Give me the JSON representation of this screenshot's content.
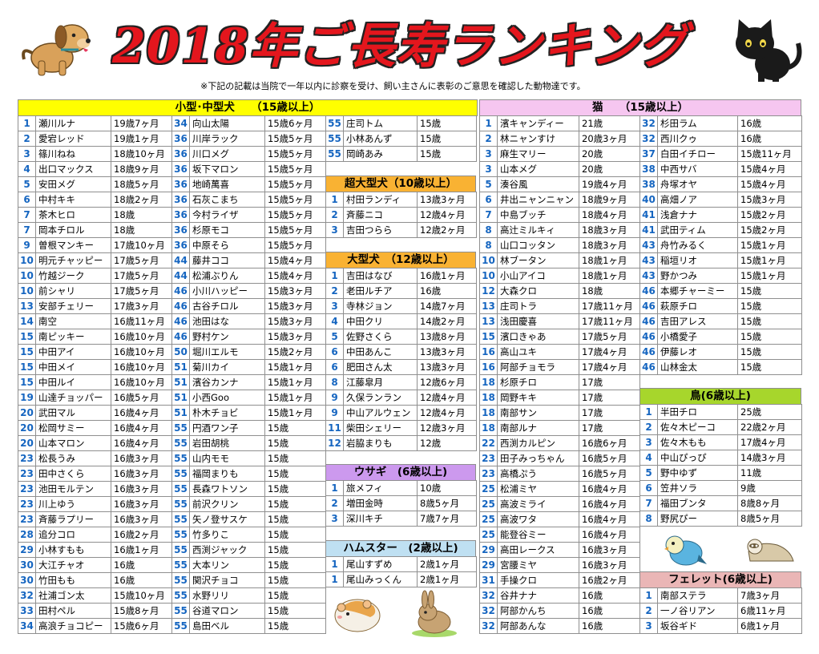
{
  "title": "2018年ご長寿ランキング",
  "note": "※下記の記載は当院で一年以内に診察を受け、飼い主さんに表彰のご意思を確認した動物達です。",
  "colors": {
    "dog_header": "#ffff00",
    "cat_header": "#f6c6f0",
    "big_header": "#f9b233",
    "rabbit_header": "#cc99ee",
    "hamster_header": "#bfe0f2",
    "bird_header": "#a7d62c",
    "ferret_header": "#eab6b6",
    "rank": "#1565c0",
    "title": "#e4161d"
  },
  "dogs": {
    "header": "小型･中型犬　　（15歳以上）",
    "col1": [
      {
        "rank": "1",
        "name": "瀬川ルナ",
        "age": "19歳7ヶ月"
      },
      {
        "rank": "2",
        "name": "愛宕レッド",
        "age": "19歳1ヶ月"
      },
      {
        "rank": "3",
        "name": "篠川ねね",
        "age": "18歳10ヶ月"
      },
      {
        "rank": "4",
        "name": "出口マックス",
        "age": "18歳9ヶ月"
      },
      {
        "rank": "5",
        "name": "安田メグ",
        "age": "18歳5ヶ月"
      },
      {
        "rank": "6",
        "name": "中村キキ",
        "age": "18歳2ヶ月"
      },
      {
        "rank": "7",
        "name": "茶木ヒロ",
        "age": "18歳"
      },
      {
        "rank": "7",
        "name": "岡本チロル",
        "age": "18歳"
      },
      {
        "rank": "9",
        "name": "曽根マンキー",
        "age": "17歳10ヶ月"
      },
      {
        "rank": "10",
        "name": "明元チャッピー",
        "age": "17歳5ヶ月"
      },
      {
        "rank": "10",
        "name": "竹越ジーク",
        "age": "17歳5ヶ月"
      },
      {
        "rank": "10",
        "name": "前シャリ",
        "age": "17歳5ヶ月"
      },
      {
        "rank": "13",
        "name": "安部チェリー",
        "age": "17歳3ヶ月"
      },
      {
        "rank": "14",
        "name": "南空",
        "age": "16歳11ヶ月"
      },
      {
        "rank": "15",
        "name": "南ピッキー",
        "age": "16歳10ヶ月"
      },
      {
        "rank": "15",
        "name": "中田アイ",
        "age": "16歳10ヶ月"
      },
      {
        "rank": "15",
        "name": "中田メイ",
        "age": "16歳10ヶ月"
      },
      {
        "rank": "15",
        "name": "中田ルイ",
        "age": "16歳10ヶ月"
      },
      {
        "rank": "19",
        "name": "山達チョッパー",
        "age": "16歳5ヶ月"
      },
      {
        "rank": "20",
        "name": "武田マル",
        "age": "16歳4ヶ月"
      },
      {
        "rank": "20",
        "name": "松岡サミー",
        "age": "16歳4ヶ月"
      },
      {
        "rank": "20",
        "name": "山本マロン",
        "age": "16歳4ヶ月"
      },
      {
        "rank": "23",
        "name": "松長うみ",
        "age": "16歳3ヶ月"
      },
      {
        "rank": "23",
        "name": "田中さくら",
        "age": "16歳3ヶ月"
      },
      {
        "rank": "23",
        "name": "池田モルテン",
        "age": "16歳3ヶ月"
      },
      {
        "rank": "23",
        "name": "川上ゆう",
        "age": "16歳3ヶ月"
      },
      {
        "rank": "23",
        "name": "斉藤ラプリー",
        "age": "16歳3ヶ月"
      },
      {
        "rank": "28",
        "name": "追分コロ",
        "age": "16歳2ヶ月"
      },
      {
        "rank": "29",
        "name": "小林すもも",
        "age": "16歳1ヶ月"
      },
      {
        "rank": "30",
        "name": "大江チャオ",
        "age": "16歳"
      },
      {
        "rank": "30",
        "name": "竹田もも",
        "age": "16歳"
      },
      {
        "rank": "32",
        "name": "社浦ゴン太",
        "age": "15歳10ヶ月"
      },
      {
        "rank": "33",
        "name": "田村ペル",
        "age": "15歳8ヶ月"
      },
      {
        "rank": "34",
        "name": "高浪チョコピー",
        "age": "15歳6ヶ月"
      }
    ],
    "col2": [
      {
        "rank": "34",
        "name": "向山太陽",
        "age": "15歳6ヶ月"
      },
      {
        "rank": "36",
        "name": "川岸ラック",
        "age": "15歳5ヶ月"
      },
      {
        "rank": "36",
        "name": "川口メグ",
        "age": "15歳5ヶ月"
      },
      {
        "rank": "36",
        "name": "坂下マロン",
        "age": "15歳5ヶ月"
      },
      {
        "rank": "36",
        "name": "地崎萬喜",
        "age": "15歳5ヶ月"
      },
      {
        "rank": "36",
        "name": "石灰こまち",
        "age": "15歳5ヶ月"
      },
      {
        "rank": "36",
        "name": "今村ライザ",
        "age": "15歳5ヶ月"
      },
      {
        "rank": "36",
        "name": "杉原モコ",
        "age": "15歳5ヶ月"
      },
      {
        "rank": "36",
        "name": "中原そら",
        "age": "15歳5ヶ月"
      },
      {
        "rank": "44",
        "name": "藤井ココ",
        "age": "15歳4ヶ月"
      },
      {
        "rank": "44",
        "name": "松浦ぶりん",
        "age": "15歳4ヶ月"
      },
      {
        "rank": "46",
        "name": "小川ハッピー",
        "age": "15歳3ヶ月"
      },
      {
        "rank": "46",
        "name": "古谷チロル",
        "age": "15歳3ヶ月"
      },
      {
        "rank": "46",
        "name": "池田はな",
        "age": "15歳3ヶ月"
      },
      {
        "rank": "46",
        "name": "野村ケン",
        "age": "15歳3ヶ月"
      },
      {
        "rank": "50",
        "name": "堀川エルモ",
        "age": "15歳2ヶ月"
      },
      {
        "rank": "51",
        "name": "菊川カイ",
        "age": "15歳1ヶ月"
      },
      {
        "rank": "51",
        "name": "濱谷カンナ",
        "age": "15歳1ヶ月"
      },
      {
        "rank": "51",
        "name": "小西Goo",
        "age": "15歳1ヶ月"
      },
      {
        "rank": "51",
        "name": "朴木チョビ",
        "age": "15歳1ヶ月"
      },
      {
        "rank": "55",
        "name": "円酒ワン子",
        "age": "15歳"
      },
      {
        "rank": "55",
        "name": "岩田胡桃",
        "age": "15歳"
      },
      {
        "rank": "55",
        "name": "山内モモ",
        "age": "15歳"
      },
      {
        "rank": "55",
        "name": "福岡まりも",
        "age": "15歳"
      },
      {
        "rank": "55",
        "name": "長森ワトソン",
        "age": "15歳"
      },
      {
        "rank": "55",
        "name": "前沢クリン",
        "age": "15歳"
      },
      {
        "rank": "55",
        "name": "矢ノ登サスケ",
        "age": "15歳"
      },
      {
        "rank": "55",
        "name": "竹多りこ",
        "age": "15歳"
      },
      {
        "rank": "55",
        "name": "西渕ジャック",
        "age": "15歳"
      },
      {
        "rank": "55",
        "name": "大本リン",
        "age": "15歳"
      },
      {
        "rank": "55",
        "name": "関沢チョコ",
        "age": "15歳"
      },
      {
        "rank": "55",
        "name": "水野リリ",
        "age": "15歳"
      },
      {
        "rank": "55",
        "name": "谷道マロン",
        "age": "15歳"
      },
      {
        "rank": "55",
        "name": "島田ベル",
        "age": "15歳"
      }
    ],
    "col3": [
      {
        "rank": "55",
        "name": "庄司トム",
        "age": "15歳"
      },
      {
        "rank": "55",
        "name": "小林あんず",
        "age": "15歳"
      },
      {
        "rank": "55",
        "name": "岡崎あみ",
        "age": "15歳"
      }
    ]
  },
  "xl_dogs": {
    "header": "超大型犬（10歳以上）",
    "rows": [
      {
        "rank": "1",
        "name": "村田ランディ",
        "age": "13歳3ヶ月"
      },
      {
        "rank": "2",
        "name": "斉藤ニコ",
        "age": "12歳4ヶ月"
      },
      {
        "rank": "3",
        "name": "吉田つらら",
        "age": "12歳2ヶ月"
      }
    ]
  },
  "big_dogs": {
    "header": "大型犬　（12歳以上）",
    "rows": [
      {
        "rank": "1",
        "name": "吉田はなび",
        "age": "16歳1ヶ月"
      },
      {
        "rank": "2",
        "name": "老田ルチア",
        "age": "16歳"
      },
      {
        "rank": "3",
        "name": "寺林ジョン",
        "age": "14歳7ヶ月"
      },
      {
        "rank": "4",
        "name": "中田クリ",
        "age": "14歳2ヶ月"
      },
      {
        "rank": "5",
        "name": "佐野さくら",
        "age": "13歳8ヶ月"
      },
      {
        "rank": "6",
        "name": "中田あんこ",
        "age": "13歳3ヶ月"
      },
      {
        "rank": "6",
        "name": "肥田さん太",
        "age": "13歳3ヶ月"
      },
      {
        "rank": "8",
        "name": "江藤皐月",
        "age": "12歳6ヶ月"
      },
      {
        "rank": "9",
        "name": "久保ランラン",
        "age": "12歳4ヶ月"
      },
      {
        "rank": "9",
        "name": "中山アルウェン",
        "age": "12歳4ヶ月"
      },
      {
        "rank": "11",
        "name": "柴田シェリー",
        "age": "12歳3ヶ月"
      },
      {
        "rank": "12",
        "name": "岩脇まりも",
        "age": "12歳"
      }
    ]
  },
  "rabbits": {
    "header": "ウサギ　(6歳以上)",
    "rows": [
      {
        "rank": "1",
        "name": "旅メフィ",
        "age": "10歳"
      },
      {
        "rank": "2",
        "name": "増田金時",
        "age": "8歳5ヶ月"
      },
      {
        "rank": "3",
        "name": "深川キチ",
        "age": "7歳7ヶ月"
      }
    ]
  },
  "hamsters": {
    "header": "ハムスター　(2歳以上)",
    "rows": [
      {
        "rank": "1",
        "name": "尾山すずめ",
        "age": "2歳1ヶ月"
      },
      {
        "rank": "1",
        "name": "尾山みっくん",
        "age": "2歳1ヶ月"
      }
    ]
  },
  "cats": {
    "header": "猫　　（15歳以上）",
    "col1": [
      {
        "rank": "1",
        "name": "濱キャンディー",
        "age": "21歳"
      },
      {
        "rank": "2",
        "name": "林ニャンすけ",
        "age": "20歳3ヶ月"
      },
      {
        "rank": "3",
        "name": "麻生マリー",
        "age": "20歳"
      },
      {
        "rank": "3",
        "name": "山本メグ",
        "age": "20歳"
      },
      {
        "rank": "5",
        "name": "湊谷風",
        "age": "19歳4ヶ月"
      },
      {
        "rank": "6",
        "name": "井出ニャンニャン",
        "age": "18歳9ヶ月"
      },
      {
        "rank": "7",
        "name": "中島ブッチ",
        "age": "18歳4ヶ月"
      },
      {
        "rank": "8",
        "name": "高辻ミルキィ",
        "age": "18歳3ヶ月"
      },
      {
        "rank": "8",
        "name": "山口コッタン",
        "age": "18歳3ヶ月"
      },
      {
        "rank": "10",
        "name": "林ブータン",
        "age": "18歳1ヶ月"
      },
      {
        "rank": "10",
        "name": "小山アイコ",
        "age": "18歳1ヶ月"
      },
      {
        "rank": "12",
        "name": "大森クロ",
        "age": "18歳"
      },
      {
        "rank": "13",
        "name": "庄司トラ",
        "age": "17歳11ヶ月"
      },
      {
        "rank": "13",
        "name": "浅田慶喜",
        "age": "17歳11ヶ月"
      },
      {
        "rank": "15",
        "name": "濱口きゃあ",
        "age": "17歳5ヶ月"
      },
      {
        "rank": "16",
        "name": "高山ユキ",
        "age": "17歳4ヶ月"
      },
      {
        "rank": "16",
        "name": "阿部チョモラ",
        "age": "17歳4ヶ月"
      },
      {
        "rank": "18",
        "name": "杉原チロ",
        "age": "17歳"
      },
      {
        "rank": "18",
        "name": "岡野キキ",
        "age": "17歳"
      },
      {
        "rank": "18",
        "name": "南部サン",
        "age": "17歳"
      },
      {
        "rank": "18",
        "name": "南部ルナ",
        "age": "17歳"
      },
      {
        "rank": "22",
        "name": "西渕カルピン",
        "age": "16歳6ヶ月"
      },
      {
        "rank": "23",
        "name": "田子みっちゃん",
        "age": "16歳5ヶ月"
      },
      {
        "rank": "23",
        "name": "高橋ぷう",
        "age": "16歳5ヶ月"
      },
      {
        "rank": "25",
        "name": "松浦ミヤ",
        "age": "16歳4ヶ月"
      },
      {
        "rank": "25",
        "name": "高波ミライ",
        "age": "16歳4ヶ月"
      },
      {
        "rank": "25",
        "name": "高波ワタ",
        "age": "16歳4ヶ月"
      },
      {
        "rank": "25",
        "name": "能登谷ミー",
        "age": "16歳4ヶ月"
      },
      {
        "rank": "29",
        "name": "高田レークス",
        "age": "16歳3ヶ月"
      },
      {
        "rank": "29",
        "name": "宮腰ミヤ",
        "age": "16歳3ヶ月"
      },
      {
        "rank": "31",
        "name": "手操クロ",
        "age": "16歳2ヶ月"
      },
      {
        "rank": "32",
        "name": "谷井ナナ",
        "age": "16歳"
      },
      {
        "rank": "32",
        "name": "阿部かんち",
        "age": "16歳"
      },
      {
        "rank": "32",
        "name": "阿部あんな",
        "age": "16歳"
      }
    ],
    "col2": [
      {
        "rank": "32",
        "name": "杉田ラム",
        "age": "16歳"
      },
      {
        "rank": "32",
        "name": "西川クゥ",
        "age": "16歳"
      },
      {
        "rank": "37",
        "name": "白田イチロー",
        "age": "15歳11ヶ月"
      },
      {
        "rank": "38",
        "name": "中西サバ",
        "age": "15歳4ヶ月"
      },
      {
        "rank": "38",
        "name": "舟塚オヤ",
        "age": "15歳4ヶ月"
      },
      {
        "rank": "40",
        "name": "高畑ノア",
        "age": "15歳3ヶ月"
      },
      {
        "rank": "41",
        "name": "浅倉ナナ",
        "age": "15歳2ヶ月"
      },
      {
        "rank": "41",
        "name": "武田ティム",
        "age": "15歳2ヶ月"
      },
      {
        "rank": "43",
        "name": "舟竹みるく",
        "age": "15歳1ヶ月"
      },
      {
        "rank": "43",
        "name": "稲垣リオ",
        "age": "15歳1ヶ月"
      },
      {
        "rank": "43",
        "name": "野かつみ",
        "age": "15歳1ヶ月"
      },
      {
        "rank": "46",
        "name": "本郷チャーミー",
        "age": "15歳"
      },
      {
        "rank": "46",
        "name": "萩原チロ",
        "age": "15歳"
      },
      {
        "rank": "46",
        "name": "吉田アレス",
        "age": "15歳"
      },
      {
        "rank": "46",
        "name": "小橋愛子",
        "age": "15歳"
      },
      {
        "rank": "46",
        "name": "伊藤レオ",
        "age": "15歳"
      },
      {
        "rank": "46",
        "name": "山林金太",
        "age": "15歳"
      }
    ]
  },
  "birds": {
    "header": "鳥(6歳以上)",
    "rows": [
      {
        "rank": "1",
        "name": "半田チロ",
        "age": "25歳"
      },
      {
        "rank": "2",
        "name": "佐々木ピーコ",
        "age": "22歳2ヶ月"
      },
      {
        "rank": "3",
        "name": "佐々木もも",
        "age": "17歳4ヶ月"
      },
      {
        "rank": "4",
        "name": "中山ぴっぴ",
        "age": "14歳3ヶ月"
      },
      {
        "rank": "5",
        "name": "野中ゆず",
        "age": "11歳"
      },
      {
        "rank": "6",
        "name": "笠井ソラ",
        "age": "9歳"
      },
      {
        "rank": "7",
        "name": "福田ブンタ",
        "age": "8歳8ヶ月"
      },
      {
        "rank": "8",
        "name": "野尻ぴー",
        "age": "8歳5ヶ月"
      }
    ]
  },
  "ferrets": {
    "header": "フェレット(6歳以上)",
    "rows": [
      {
        "rank": "1",
        "name": "南部ステラ",
        "age": "7歳3ヶ月"
      },
      {
        "rank": "2",
        "name": "一ノ谷リアン",
        "age": "6歳11ヶ月"
      },
      {
        "rank": "3",
        "name": "坂谷ギド",
        "age": "6歳1ヶ月"
      }
    ]
  }
}
